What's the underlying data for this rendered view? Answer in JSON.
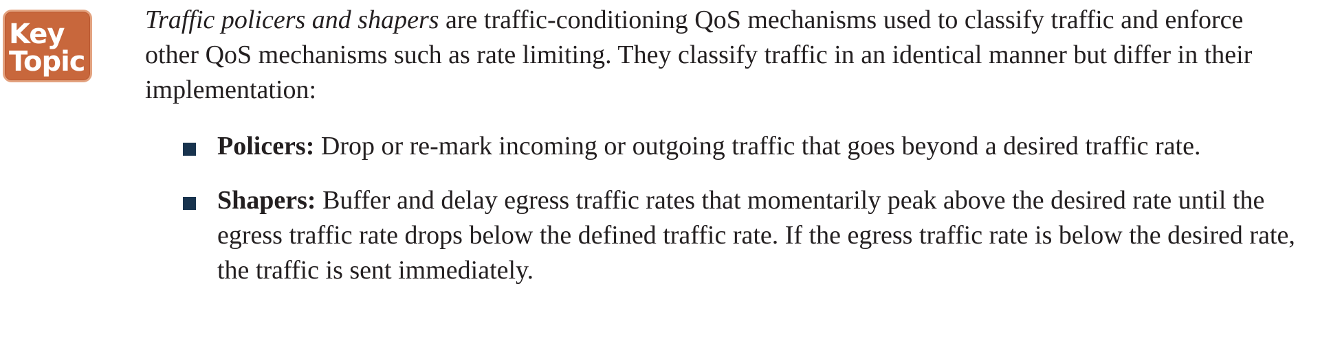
{
  "badge": {
    "line1": "Key",
    "line2": "Topic"
  },
  "intro": {
    "lead_italic": "Traffic policers and shapers",
    "text": " are traffic-conditioning QoS mechanisms used to classify traffic and enforce other QoS mechanisms such as rate limiting. They classify traffic in an identical manner but differ in their implementation:"
  },
  "bullets": [
    {
      "term": "Policers:",
      "text": " Drop or re-mark incoming or outgoing traffic that goes beyond a desired traffic rate."
    },
    {
      "term": "Shapers:",
      "text": " Buffer and delay egress traffic rates that momentarily peak above the desired rate until the egress traffic rate drops below the defined traffic rate. If the egress traffic rate is below the desired rate, the traffic is sent immediately."
    }
  ],
  "colors": {
    "badge_fill": "#c8673c",
    "bullet_marker": "#18334e",
    "text": "#231f20"
  }
}
